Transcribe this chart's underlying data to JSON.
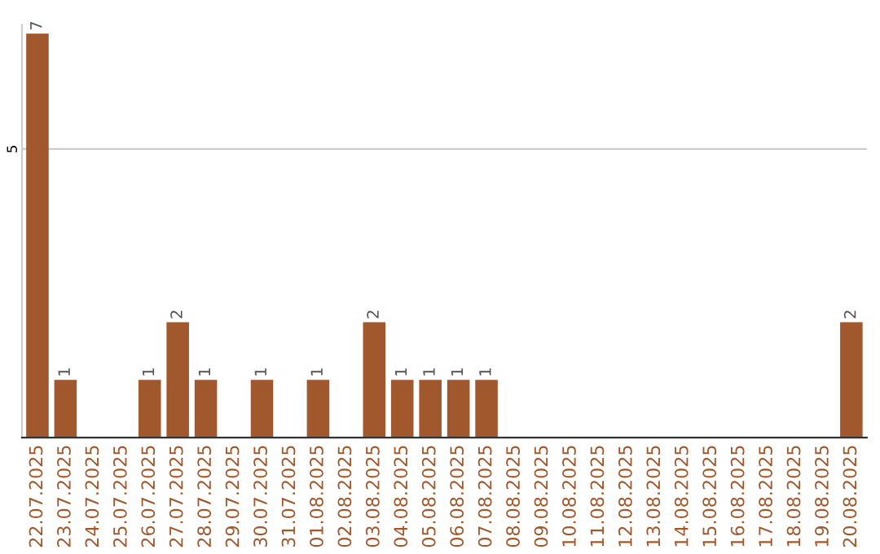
{
  "chart_data": {
    "type": "bar",
    "categories": [
      "22.07.2025",
      "23.07.2025",
      "24.07.2025",
      "25.07.2025",
      "26.07.2025",
      "27.07.2025",
      "28.07.2025",
      "29.07.2025",
      "30.07.2025",
      "31.07.2025",
      "01.08.2025",
      "02.08.2025",
      "03.08.2025",
      "04.08.2025",
      "05.08.2025",
      "06.08.2025",
      "07.08.2025",
      "08.08.2025",
      "09.08.2025",
      "10.08.2025",
      "11.08.2025",
      "12.08.2025",
      "13.08.2025",
      "14.08.2025",
      "15.08.2025",
      "16.08.2025",
      "17.08.2025",
      "18.08.2025",
      "19.08.2025",
      "20.08.2025"
    ],
    "values": [
      7,
      1,
      0,
      0,
      1,
      2,
      1,
      0,
      1,
      0,
      1,
      0,
      2,
      1,
      1,
      1,
      1,
      0,
      0,
      0,
      0,
      0,
      0,
      0,
      0,
      0,
      0,
      0,
      0,
      2
    ],
    "value_labels": [
      "7",
      "1",
      null,
      null,
      "1",
      "2",
      "1",
      null,
      "1",
      null,
      "1",
      null,
      "2",
      "1",
      "1",
      "1",
      "1",
      null,
      null,
      null,
      null,
      null,
      null,
      null,
      null,
      null,
      null,
      null,
      null,
      "2"
    ],
    "color": "#a0582c",
    "ylim": [
      0,
      7.15
    ],
    "yticks": [
      5
    ],
    "grid": "y"
  }
}
